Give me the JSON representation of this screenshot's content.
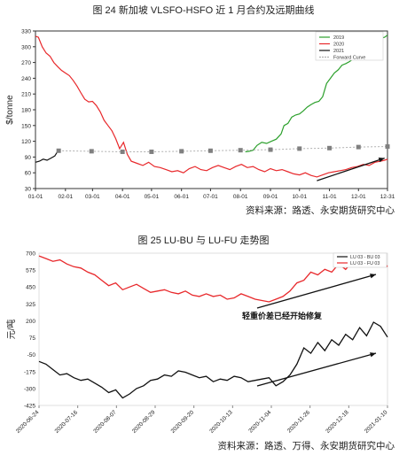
{
  "figure1": {
    "title": "图 24 新加坡 VLSFO-HSFO 近 1 月合约及远期曲线",
    "source": "资料来源：路透、永安期货研究中心"
  },
  "figure2": {
    "title": "图 25 LU-BU 与 LU-FU 走势图",
    "source": "资料来源：路透、万得、永安期货研究中心"
  },
  "chart_data": [
    {
      "type": "line",
      "title": "图 24 新加坡 VLSFO-HSFO 近 1 月合约及远期曲线",
      "xlabel": "",
      "ylabel": "$/tonne",
      "ylim": [
        30,
        330
      ],
      "yticks": [
        30,
        60,
        90,
        120,
        150,
        180,
        210,
        240,
        270,
        300,
        330
      ],
      "xticks": [
        "01-01",
        "02-01",
        "03-01",
        "04-01",
        "05-01",
        "06-01",
        "07-01",
        "08-01",
        "09-01",
        "10-01",
        "11-01",
        "12-01",
        "12-31"
      ],
      "legend_position": "top-right",
      "series": [
        {
          "name": "2019",
          "color": "#2ca02c",
          "x": [
            218,
            222,
            226,
            230,
            235,
            240,
            245,
            250,
            255,
            258,
            262,
            266,
            270,
            274,
            278,
            282,
            286,
            290,
            294,
            298,
            302,
            306,
            310,
            314,
            318,
            322,
            326,
            330,
            334,
            338,
            342,
            346,
            350,
            354,
            358,
            362,
            365
          ],
          "values": [
            100,
            101,
            103,
            112,
            118,
            116,
            120,
            124,
            134,
            150,
            154,
            166,
            170,
            172,
            178,
            185,
            190,
            194,
            196,
            205,
            230,
            240,
            250,
            256,
            265,
            268,
            272,
            278,
            290,
            296,
            300,
            304,
            308,
            312,
            316,
            318,
            322
          ]
        },
        {
          "name": "2020",
          "color": "#e8282b",
          "x": [
            1,
            4,
            8,
            12,
            16,
            20,
            24,
            28,
            32,
            36,
            40,
            44,
            48,
            52,
            56,
            60,
            64,
            68,
            72,
            76,
            80,
            84,
            88,
            92,
            96,
            100,
            106,
            112,
            118,
            124,
            130,
            136,
            142,
            148,
            154,
            160,
            166,
            172,
            178,
            184,
            190,
            196,
            202,
            208,
            214,
            220,
            226,
            232,
            238,
            244,
            250,
            256,
            262,
            268,
            274,
            280,
            286,
            292,
            298,
            304,
            310,
            316,
            322,
            328,
            334,
            340,
            346,
            352,
            358,
            362,
            365
          ],
          "values": [
            320,
            318,
            300,
            288,
            282,
            270,
            262,
            255,
            250,
            245,
            236,
            225,
            212,
            200,
            195,
            196,
            188,
            176,
            160,
            150,
            140,
            125,
            106,
            118,
            95,
            82,
            78,
            74,
            80,
            72,
            70,
            66,
            62,
            64,
            60,
            68,
            72,
            66,
            64,
            70,
            74,
            70,
            66,
            72,
            76,
            70,
            72,
            66,
            62,
            68,
            64,
            66,
            62,
            58,
            56,
            60,
            55,
            52,
            56,
            60,
            62,
            64,
            66,
            70,
            72,
            76,
            74,
            80,
            82,
            84,
            86
          ]
        },
        {
          "name": "2021",
          "color": "#111111",
          "x": [
            1,
            5,
            9,
            13,
            17,
            21,
            25
          ],
          "values": [
            80,
            82,
            86,
            84,
            88,
            92,
            104
          ]
        },
        {
          "name": "Forward Curve",
          "color": "#808080",
          "x": [
            25,
            59,
            91,
            121,
            152,
            182,
            213,
            244,
            274,
            305,
            335,
            365
          ],
          "values": [
            102,
            101,
            100,
            100,
            101,
            102,
            103,
            104,
            106,
            107,
            109,
            110
          ]
        }
      ]
    },
    {
      "type": "line",
      "title": "图 25 LU-BU 与 LU-FU 走势图",
      "xlabel": "",
      "ylabel": "元/吨",
      "ylim": [
        -425,
        700
      ],
      "yticks": [
        -425,
        -300,
        -175,
        -50,
        75,
        200,
        325,
        450,
        575,
        700
      ],
      "xticks": [
        "2020-06-24",
        "2020-07-16",
        "2020-08-07",
        "2020-08-29",
        "2020-09-20",
        "2020-10-13",
        "2020-11-04",
        "2020-11-26",
        "2020-12-18",
        "2021-01-10"
      ],
      "legend_position": "top-right",
      "annotation": "轻重价差已经开始修复",
      "series": [
        {
          "name": "LU 03 - BU 03",
          "color": "#111111",
          "x": [
            0,
            4,
            8,
            12,
            16,
            20,
            24,
            28,
            32,
            36,
            40,
            44,
            48,
            52,
            56,
            60,
            64,
            68,
            72,
            76,
            80,
            84,
            88,
            92,
            96,
            100,
            104,
            108,
            112,
            116,
            120,
            124,
            128,
            132,
            136,
            140,
            144,
            148,
            152,
            156,
            160,
            164,
            168,
            172,
            176,
            180,
            184,
            188,
            192,
            196,
            200
          ],
          "values": [
            -100,
            -120,
            -160,
            -200,
            -190,
            -220,
            -240,
            -230,
            -260,
            -290,
            -330,
            -310,
            -370,
            -340,
            -300,
            -280,
            -240,
            -230,
            -200,
            -210,
            -170,
            -180,
            -200,
            -220,
            -210,
            -250,
            -230,
            -240,
            -210,
            -220,
            -250,
            -240,
            -230,
            -220,
            -280,
            -250,
            -200,
            -120,
            0,
            -40,
            40,
            -20,
            60,
            20,
            100,
            60,
            150,
            90,
            190,
            160,
            80
          ]
        },
        {
          "name": "LU 03 - FU 03",
          "color": "#e8282b",
          "x": [
            0,
            4,
            8,
            12,
            16,
            20,
            24,
            28,
            32,
            36,
            40,
            44,
            48,
            52,
            56,
            60,
            64,
            68,
            72,
            76,
            80,
            84,
            88,
            92,
            96,
            100,
            104,
            108,
            112,
            116,
            120,
            124,
            128,
            132,
            136,
            140,
            144,
            148,
            152,
            156,
            160,
            164,
            168,
            172,
            176,
            180,
            184,
            188,
            192,
            196,
            200
          ],
          "values": [
            680,
            660,
            640,
            650,
            620,
            600,
            590,
            560,
            540,
            500,
            460,
            480,
            430,
            450,
            470,
            440,
            410,
            420,
            430,
            410,
            400,
            420,
            390,
            380,
            400,
            380,
            390,
            360,
            370,
            400,
            380,
            360,
            350,
            340,
            360,
            380,
            420,
            480,
            500,
            560,
            540,
            580,
            560,
            620,
            580,
            640,
            600,
            680,
            620,
            660,
            600
          ]
        }
      ]
    }
  ]
}
